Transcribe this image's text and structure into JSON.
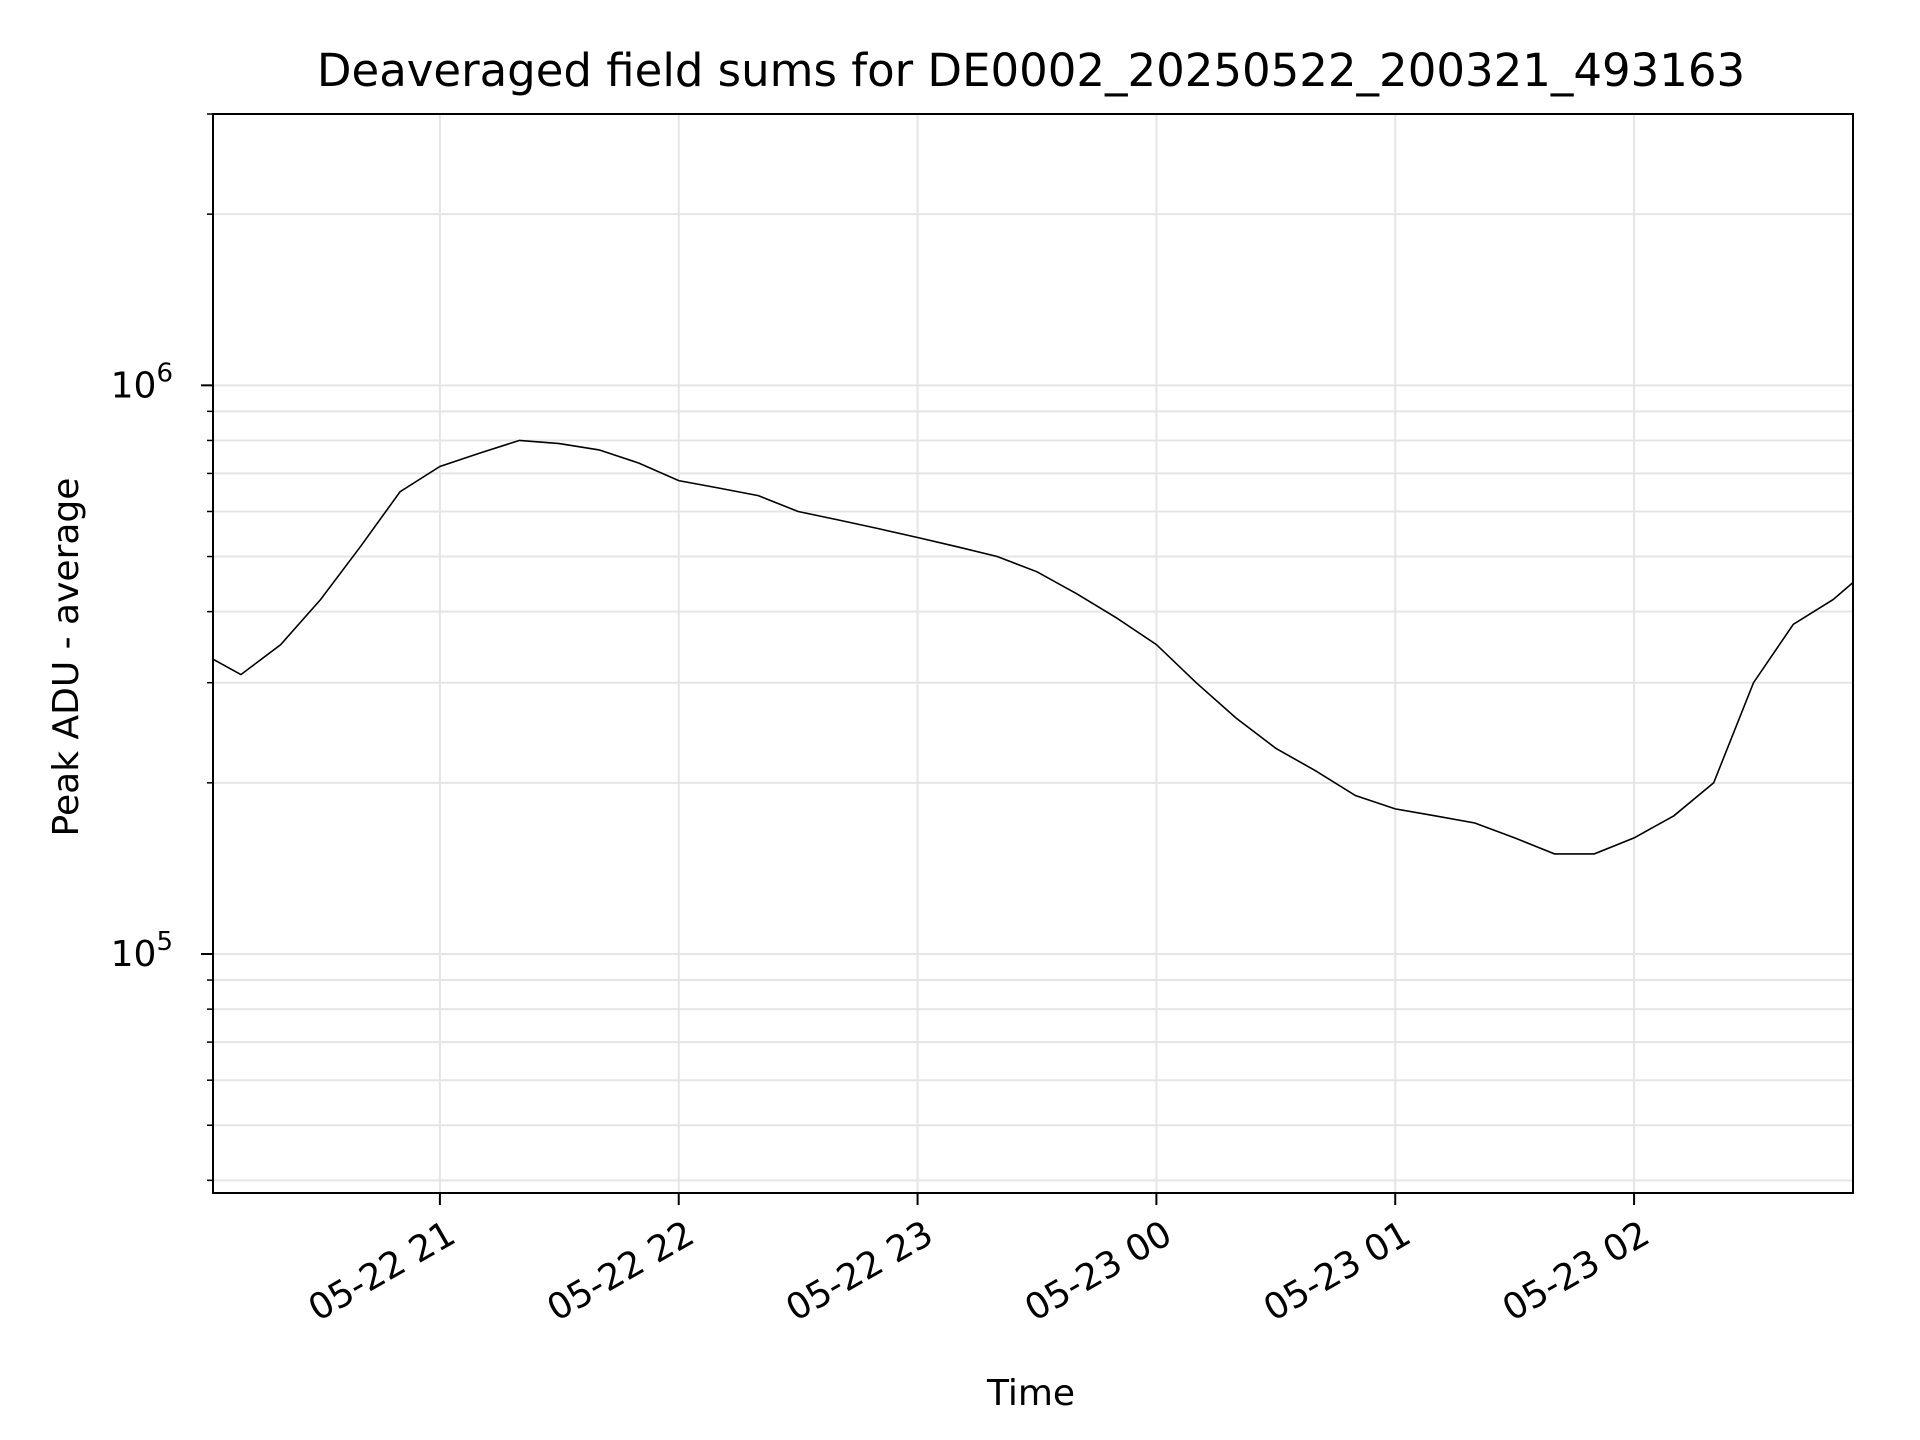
{
  "chart_data": {
    "type": "line",
    "title": "Deaveraged field sums for DE0002_20250522_200321_493163",
    "xlabel": "Time",
    "ylabel": "Peak ADU - average",
    "yscale": "log",
    "ylim": [
      38000,
      3000000
    ],
    "xlim": [
      "2025-05-22 20:03",
      "2025-05-23 02:55"
    ],
    "x_ticks": [
      {
        "value": "2025-05-22 21:00",
        "label": "05-22 21"
      },
      {
        "value": "2025-05-22 22:00",
        "label": "05-22 22"
      },
      {
        "value": "2025-05-22 23:00",
        "label": "05-22 23"
      },
      {
        "value": "2025-05-23 00:00",
        "label": "05-23 00"
      },
      {
        "value": "2025-05-23 01:00",
        "label": "05-23 01"
      },
      {
        "value": "2025-05-23 02:00",
        "label": "05-23 02"
      }
    ],
    "y_ticks": [
      {
        "value": 100000,
        "base": "10",
        "exp": "5"
      },
      {
        "value": 1000000,
        "base": "10",
        "exp": "6"
      }
    ],
    "grid": true,
    "line_color": "#000000",
    "series": [
      {
        "x": [
          "2025-05-22 20:03",
          "2025-05-22 20:10",
          "2025-05-22 20:20",
          "2025-05-22 20:30",
          "2025-05-22 20:40",
          "2025-05-22 20:50",
          "2025-05-22 21:00",
          "2025-05-22 21:10",
          "2025-05-22 21:20",
          "2025-05-22 21:30",
          "2025-05-22 21:40",
          "2025-05-22 21:50",
          "2025-05-22 22:00",
          "2025-05-22 22:10",
          "2025-05-22 22:20",
          "2025-05-22 22:30",
          "2025-05-22 22:40",
          "2025-05-22 22:50",
          "2025-05-22 23:00",
          "2025-05-22 23:10",
          "2025-05-22 23:20",
          "2025-05-22 23:30",
          "2025-05-22 23:40",
          "2025-05-22 23:50",
          "2025-05-23 00:00",
          "2025-05-23 00:10",
          "2025-05-23 00:20",
          "2025-05-23 00:30",
          "2025-05-23 00:40",
          "2025-05-23 00:50",
          "2025-05-23 01:00",
          "2025-05-23 01:10",
          "2025-05-23 01:20",
          "2025-05-23 01:30",
          "2025-05-23 01:40",
          "2025-05-23 01:50",
          "2025-05-23 02:00",
          "2025-05-23 02:10",
          "2025-05-23 02:20",
          "2025-05-23 02:30",
          "2025-05-23 02:40",
          "2025-05-23 02:50",
          "2025-05-23 02:55"
        ],
        "y": [
          330000,
          310000,
          350000,
          420000,
          520000,
          650000,
          720000,
          760000,
          800000,
          790000,
          770000,
          730000,
          680000,
          660000,
          640000,
          600000,
          580000,
          560000,
          540000,
          520000,
          500000,
          470000,
          430000,
          390000,
          350000,
          300000,
          260000,
          230000,
          210000,
          190000,
          180000,
          175000,
          170000,
          160000,
          150000,
          150000,
          160000,
          175000,
          200000,
          300000,
          380000,
          420000,
          450000
        ]
      }
    ]
  }
}
